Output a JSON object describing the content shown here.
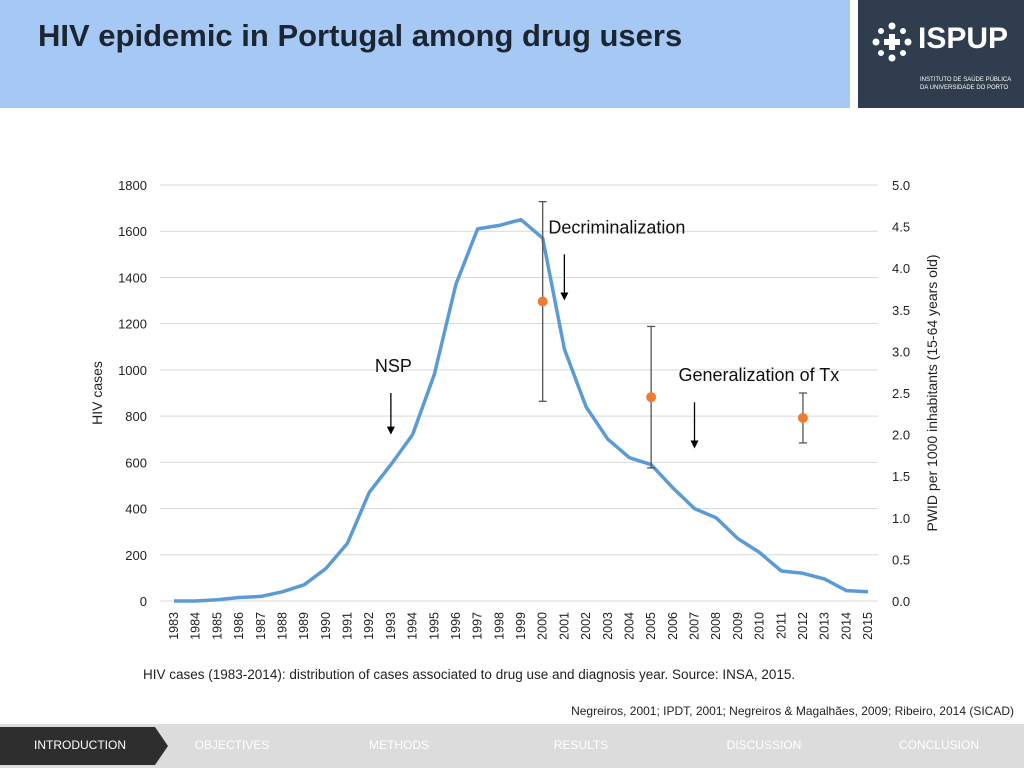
{
  "header": {
    "title": "HIV epidemic in Portugal among drug users"
  },
  "logo": {
    "name": "ISPUP",
    "subtitle_line1": "INSTITUTO DE SAÚDE PÚBLICA",
    "subtitle_line2": "DA UNIVERSIDADE DO PORTO"
  },
  "chart_data": {
    "type": "line",
    "categories": [
      "1983",
      "1984",
      "1985",
      "1986",
      "1987",
      "1988",
      "1989",
      "1990",
      "1991",
      "1992",
      "1993",
      "1994",
      "1995",
      "1996",
      "1997",
      "1998",
      "1999",
      "2000",
      "2001",
      "2002",
      "2003",
      "2004",
      "2005",
      "2006",
      "2007",
      "2008",
      "2009",
      "2010",
      "2011",
      "2012",
      "2013",
      "2014",
      "2015"
    ],
    "series": [
      {
        "name": "HIV cases",
        "axis": "left",
        "color": "#5b9bd5",
        "values": [
          0,
          0,
          5,
          15,
          20,
          40,
          70,
          140,
          250,
          470,
          590,
          720,
          980,
          1370,
          1610,
          1625,
          1650,
          1570,
          1090,
          840,
          700,
          620,
          590,
          490,
          400,
          360,
          270,
          210,
          130,
          120,
          95,
          45,
          40
        ]
      }
    ],
    "pwid_series": {
      "name": "PWID per 1000 inhabitants (15-64 years old)",
      "axis": "right",
      "color": "#ed7d31",
      "points": [
        {
          "year": "2000",
          "value": 3.6,
          "low": 2.4,
          "high": 4.8
        },
        {
          "year": "2005",
          "value": 2.45,
          "low": 1.6,
          "high": 3.3
        },
        {
          "year": "2012",
          "value": 2.2,
          "low": 1.9,
          "high": 2.5
        }
      ]
    },
    "ylabel": "HIV cases",
    "ylabel_right": "PWID per 1000 inhabitants (15-64 years old)",
    "ylim": [
      0,
      1800
    ],
    "yticks": [
      "0",
      "200",
      "400",
      "600",
      "800",
      "1000",
      "1200",
      "1400",
      "1600",
      "1800"
    ],
    "ylim_right": [
      0,
      5
    ],
    "yticks_right": [
      "0.0",
      "0.5",
      "1.0",
      "1.5",
      "2.0",
      "2.5",
      "3.0",
      "3.5",
      "4.0",
      "4.5",
      "5.0"
    ],
    "annotations": [
      {
        "text": "NSP",
        "year": "1993",
        "arrow_from": 900,
        "arrow_to": 720
      },
      {
        "text": "Decriminalization",
        "year": "2001",
        "arrow_from": 1500,
        "arrow_to": 1300
      },
      {
        "text": "Generalization of Tx",
        "year": "2007",
        "arrow_from": 860,
        "arrow_to": 660
      }
    ]
  },
  "caption": "HIV cases (1983-2014): distribution of cases associated to drug use and diagnosis year. Source: INSA, 2015.",
  "references": "Negreiros, 2001; IPDT, 2001; Negreiros & Magalhães, 2009; Ribeiro, 2014 (SICAD)",
  "nav": [
    {
      "label": "INTRODUCTION",
      "active": true
    },
    {
      "label": "OBJECTIVES",
      "active": false
    },
    {
      "label": "METHODS",
      "active": false
    },
    {
      "label": "RESULTS",
      "active": false
    },
    {
      "label": "DISCUSSION",
      "active": false
    },
    {
      "label": "CONCLUSION",
      "active": false
    }
  ],
  "colors": {
    "header_bg": "#a6c8f5",
    "logo_bg": "#2f3d4f",
    "line": "#5b9bd5",
    "marker": "#ed7d31",
    "nav_active": "#2e2e2e"
  }
}
